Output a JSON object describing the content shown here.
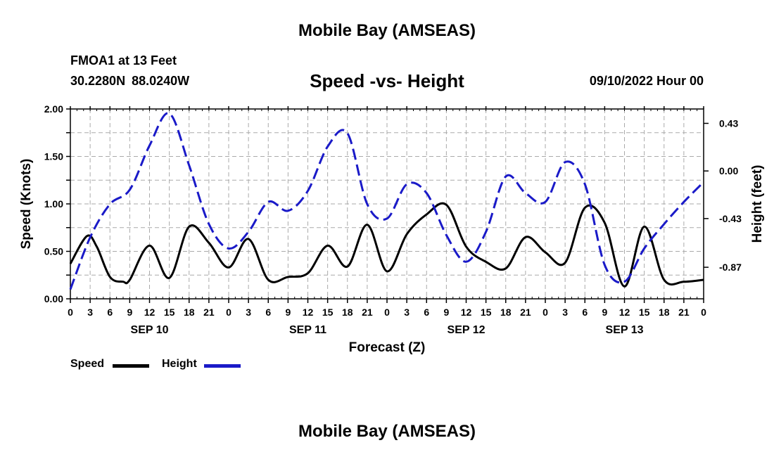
{
  "header": {
    "title": "Mobile Bay (AMSEAS)",
    "station": "FMOA1 at 13 Feet",
    "coordinates": "30.2280N  88.0240W",
    "subtitle": "Speed -vs- Height",
    "run_time": "09/10/2022 Hour 00"
  },
  "footer": {
    "title": "Mobile Bay (AMSEAS)"
  },
  "legend": {
    "speed_label": "Speed",
    "height_label": "Height"
  },
  "colors": {
    "speed": "#000000",
    "height": "#1a1ac8",
    "grid": "#aaaaaa"
  },
  "chart_data": {
    "type": "line",
    "title": "Speed -vs- Height",
    "xlabel": "Forecast (Z)",
    "ylabel_left": "Speed (Knots)",
    "ylabel_right": "Height (feet)",
    "x_range_hours": [
      0,
      96
    ],
    "y_left_range": [
      0,
      2.0
    ],
    "y_right_range": [
      -1.155,
      0.56
    ],
    "y_left_ticks": [
      "0.00",
      "0.50",
      "1.00",
      "1.50",
      "2.00"
    ],
    "y_right_ticks": [
      "-0.87",
      "-0.43",
      "0.00",
      "0.43"
    ],
    "x_tick_labels": [
      "0",
      "3",
      "6",
      "9",
      "12",
      "15",
      "18",
      "21",
      "0",
      "3",
      "6",
      "9",
      "12",
      "15",
      "18",
      "21",
      "0",
      "3",
      "6",
      "9",
      "12",
      "15",
      "18",
      "21",
      "0",
      "3",
      "6",
      "9",
      "12",
      "15",
      "18",
      "21",
      "0"
    ],
    "day_labels": [
      {
        "hour": 12,
        "label": "SEP 10"
      },
      {
        "hour": 36,
        "label": "SEP 11"
      },
      {
        "hour": 60,
        "label": "SEP 12"
      },
      {
        "hour": 84,
        "label": "SEP 13"
      }
    ],
    "series": [
      {
        "name": "Speed",
        "axis": "left",
        "hours": [
          0,
          2.5,
          4,
          6,
          8,
          9,
          12,
          15,
          18,
          21,
          24,
          27,
          30,
          33,
          36,
          39,
          42,
          45,
          48,
          51,
          54,
          57,
          60,
          63,
          66,
          69,
          72,
          75,
          78,
          81,
          84,
          87,
          90,
          93,
          96
        ],
        "values": [
          0.37,
          0.66,
          0.55,
          0.23,
          0.18,
          0.2,
          0.56,
          0.22,
          0.76,
          0.59,
          0.33,
          0.63,
          0.2,
          0.23,
          0.27,
          0.56,
          0.34,
          0.78,
          0.29,
          0.68,
          0.89,
          0.99,
          0.55,
          0.39,
          0.32,
          0.65,
          0.49,
          0.38,
          0.96,
          0.8,
          0.13,
          0.76,
          0.2,
          0.18,
          0.2
        ]
      },
      {
        "name": "Height",
        "axis": "right",
        "hours": [
          0,
          3,
          6,
          9,
          12,
          15,
          18,
          21,
          24,
          27,
          30,
          33,
          36,
          39,
          42,
          45,
          48,
          51,
          54,
          57,
          60,
          63,
          66,
          69,
          72,
          75,
          78,
          81,
          84,
          87,
          90,
          93,
          96
        ],
        "values": [
          -1.07,
          -0.6,
          -0.3,
          -0.17,
          0.23,
          0.52,
          0.05,
          -0.48,
          -0.7,
          -0.55,
          -0.28,
          -0.36,
          -0.18,
          0.22,
          0.34,
          -0.3,
          -0.43,
          -0.12,
          -0.2,
          -0.58,
          -0.82,
          -0.55,
          -0.05,
          -0.2,
          -0.28,
          0.08,
          -0.12,
          -0.85,
          -1.0,
          -0.7,
          -0.48,
          -0.28,
          -0.1
        ]
      }
    ]
  }
}
